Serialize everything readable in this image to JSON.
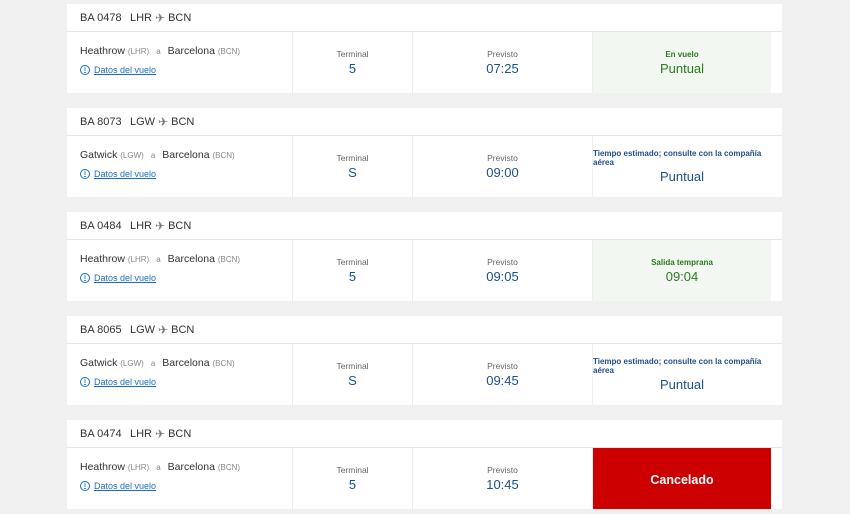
{
  "common": {
    "terminal_label": "Terminal",
    "scheduled_label": "Previsto",
    "connector": "a",
    "details_link": "Datos del vuelo"
  },
  "flights": [
    {
      "number": "BA 0478",
      "from": "LHR",
      "to": "BCN",
      "origin": "Heathrow",
      "origin_code": "(LHR)",
      "dest": "Barcelona",
      "dest_code": "(BCN)",
      "terminal": "5",
      "time": "07:25",
      "status_label": "En vuelo",
      "status_value": "Puntual",
      "status_style": "green"
    },
    {
      "number": "BA 8073",
      "from": "LGW",
      "to": "BCN",
      "origin": "Gatwick",
      "origin_code": "(LGW)",
      "dest": "Barcelona",
      "dest_code": "(BCN)",
      "terminal": "S",
      "time": "09:00",
      "status_label": "Tiempo estimado; consulte con la compañía aérea",
      "status_value": "Puntual",
      "status_style": "blue"
    },
    {
      "number": "BA 0484",
      "from": "LHR",
      "to": "BCN",
      "origin": "Heathrow",
      "origin_code": "(LHR)",
      "dest": "Barcelona",
      "dest_code": "(BCN)",
      "terminal": "5",
      "time": "09:05",
      "status_label": "Salida temprana",
      "status_value": "09:04",
      "status_style": "green"
    },
    {
      "number": "BA 8065",
      "from": "LGW",
      "to": "BCN",
      "origin": "Gatwick",
      "origin_code": "(LGW)",
      "dest": "Barcelona",
      "dest_code": "(BCN)",
      "terminal": "S",
      "time": "09:45",
      "status_label": "Tiempo estimado; consulte con la compañía aérea",
      "status_value": "Puntual",
      "status_style": "blue"
    },
    {
      "number": "BA 0474",
      "from": "LHR",
      "to": "BCN",
      "origin": "Heathrow",
      "origin_code": "(LHR)",
      "dest": "Barcelona",
      "dest_code": "(BCN)",
      "terminal": "5",
      "time": "10:45",
      "status_label": "",
      "status_value": "Cancelado",
      "status_style": "red"
    }
  ],
  "colors": {
    "accent": "#1c4f8c",
    "green": "#2b7a1f",
    "cancelled": "#cc0000",
    "link": "#1a6fc4"
  }
}
